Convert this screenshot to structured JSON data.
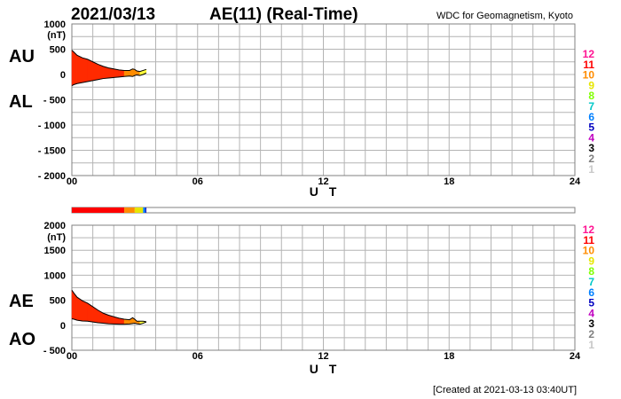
{
  "header": {
    "date": "2021/03/13",
    "title": "AE(11) (Real-Time)",
    "source": "WDC for Geomagnetism, Kyoto"
  },
  "footer": {
    "created": "[Created at 2021-03-13 03:40UT]"
  },
  "legend": {
    "labels": [
      "12",
      "11",
      "10",
      "9",
      "8",
      "7",
      "6",
      "5",
      "4",
      "3",
      "2",
      "1"
    ],
    "colors": [
      "#ff1493",
      "#ff0000",
      "#ff8c00",
      "#e6e600",
      "#80ff00",
      "#00c8c8",
      "#0080ff",
      "#0000c0",
      "#c000c0",
      "#000000",
      "#808080",
      "#c8c8c8"
    ]
  },
  "chart_data": [
    {
      "type": "area",
      "panel": "AU/AL",
      "upper_series_label": "AU",
      "lower_series_label": "AL",
      "unit": "(nT)",
      "xlabel": "U T",
      "x_ticks": [
        "00",
        "06",
        "12",
        "18",
        "24"
      ],
      "xlim": [
        0,
        24
      ],
      "y_ticks": [
        "1000",
        "500",
        "0",
        "- 500",
        "- 1000",
        "- 1500",
        "- 2000"
      ],
      "ylim": [
        -2000,
        1000
      ],
      "grid": true,
      "x": [
        0,
        0.1,
        0.25,
        0.5,
        0.75,
        1.0,
        1.25,
        1.5,
        1.75,
        2.0,
        2.25,
        2.5,
        2.75,
        2.9,
        3.0,
        3.1,
        3.25,
        3.4,
        3.55
      ],
      "series": [
        {
          "name": "AU",
          "values": [
            480,
            440,
            380,
            330,
            300,
            250,
            200,
            160,
            130,
            110,
            90,
            80,
            80,
            110,
            100,
            70,
            60,
            80,
            100
          ]
        },
        {
          "name": "AL",
          "values": [
            -220,
            -200,
            -180,
            -160,
            -140,
            -120,
            -100,
            -80,
            -70,
            -60,
            -50,
            -40,
            -30,
            -40,
            -20,
            -10,
            -20,
            0,
            30
          ]
        }
      ]
    },
    {
      "type": "bar",
      "panel": "station-count",
      "xlim": [
        0,
        24
      ],
      "segments": [
        {
          "start": 0,
          "end": 2.5,
          "stations": 11
        },
        {
          "start": 2.5,
          "end": 3.0,
          "stations": 10
        },
        {
          "start": 3.0,
          "end": 3.4,
          "stations": 9
        },
        {
          "start": 3.4,
          "end": 3.5,
          "stations": 6
        },
        {
          "start": 3.5,
          "end": 3.55,
          "stations": 5
        }
      ]
    },
    {
      "type": "area",
      "panel": "AE/AO",
      "upper_series_label": "AE",
      "lower_series_label": "AO",
      "unit": "(nT)",
      "xlabel": "U T",
      "x_ticks": [
        "00",
        "06",
        "12",
        "18",
        "24"
      ],
      "xlim": [
        0,
        24
      ],
      "y_ticks": [
        "2000",
        "1500",
        "1000",
        "500",
        "0",
        "- 500"
      ],
      "ylim": [
        -500,
        2000
      ],
      "grid": true,
      "x": [
        0,
        0.1,
        0.25,
        0.5,
        0.75,
        1.0,
        1.25,
        1.5,
        1.75,
        2.0,
        2.25,
        2.5,
        2.75,
        2.9,
        3.0,
        3.1,
        3.25,
        3.4,
        3.55
      ],
      "series": [
        {
          "name": "AE",
          "values": [
            700,
            640,
            560,
            490,
            440,
            370,
            300,
            240,
            200,
            170,
            140,
            120,
            110,
            150,
            120,
            80,
            80,
            80,
            70
          ]
        },
        {
          "name": "AO",
          "values": [
            130,
            120,
            100,
            85,
            80,
            65,
            50,
            40,
            30,
            25,
            20,
            20,
            25,
            35,
            40,
            30,
            20,
            40,
            65
          ]
        }
      ]
    }
  ]
}
